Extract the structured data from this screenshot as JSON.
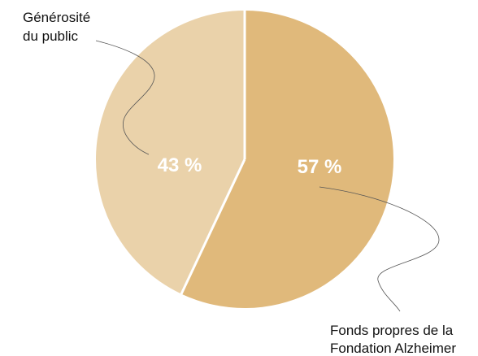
{
  "chart_data": {
    "type": "pie",
    "slices": [
      {
        "label_lines": [
          "Fonds propres de la",
          "Fondation Alzheimer"
        ],
        "value": 57,
        "value_label": "57 %",
        "color": "#e0b97b"
      },
      {
        "label_lines": [
          "Générosité",
          "du public"
        ],
        "value": 43,
        "value_label": "43 %",
        "color": "#ead2aa"
      }
    ],
    "start_angle_deg": 0,
    "direction": "clockwise",
    "separator_color": "#ffffff",
    "leader_line_color": "#555555"
  }
}
